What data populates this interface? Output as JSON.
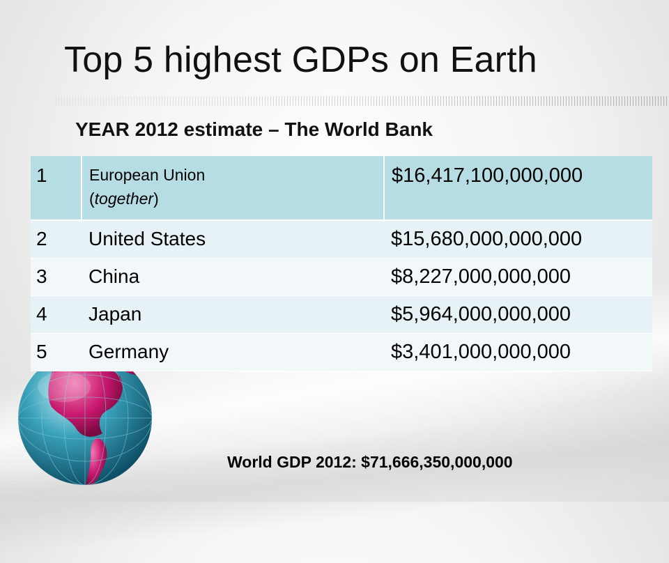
{
  "slide": {
    "title": "Top 5 highest GDPs on Earth",
    "subtitle": "YEAR 2012 estimate – The World Bank",
    "footer": "World GDP 2012: $71,666,350,000,000"
  },
  "table": {
    "header_row": {
      "rank": "1",
      "country_main": "European Union",
      "country_note": "(together)",
      "value": "$16,417,100,000,000"
    },
    "rows": [
      {
        "rank": "2",
        "country": "United States",
        "value": "$15,680,000,000,000"
      },
      {
        "rank": "3",
        "country": "China",
        "value": "$8,227,000,000,000"
      },
      {
        "rank": "4",
        "country": "Japan",
        "value": "$5,964,000,000,000"
      },
      {
        "rank": "5",
        "country": "Germany",
        "value": "$3,401,000,000,000"
      }
    ]
  },
  "colors": {
    "header_row": "#b6dde3",
    "row_light": "#f2f8fa",
    "row_alt": "#e6f2f5",
    "globe_ocean": "#2f8fa8",
    "globe_land": "#c8186e"
  },
  "icons": {
    "globe": "globe-icon"
  }
}
